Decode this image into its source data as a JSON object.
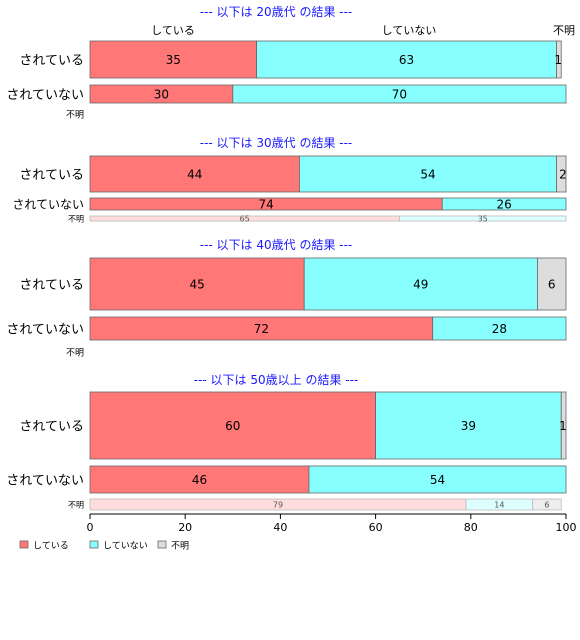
{
  "chart_data": {
    "type": "bar",
    "orientation": "horizontal",
    "stacked": true,
    "percent": true,
    "xlim": [
      0,
      100
    ],
    "xticks": [
      "0",
      "20",
      "40",
      "60",
      "80",
      "100"
    ],
    "series_names": [
      "している",
      "していない",
      "不明"
    ],
    "series_colors": [
      "#ff7777",
      "#88ffff",
      "#dddddd"
    ],
    "light_colors": [
      "#ffdddd",
      "#ddffff",
      "#eeeeee"
    ],
    "legend": {
      "position": "bottom-left",
      "items": [
        "している",
        "していない",
        "不明"
      ]
    },
    "top_labels": [
      "している",
      "していない",
      "不明"
    ],
    "panels": [
      {
        "title": "--- 以下は 20歳代 の結果 ---",
        "rows": [
          {
            "label": "されている",
            "values": [
              35,
              63,
              1
            ]
          },
          {
            "label": "されていない",
            "values": [
              30,
              70,
              0
            ]
          },
          {
            "label": "不明",
            "values": []
          }
        ]
      },
      {
        "title": "--- 以下は 30歳代 の結果 ---",
        "rows": [
          {
            "label": "されている",
            "values": [
              44,
              54,
              2
            ]
          },
          {
            "label": "されていない",
            "values": [
              74,
              26,
              0
            ]
          },
          {
            "label": "不明",
            "values": [
              65,
              35,
              0
            ]
          }
        ]
      },
      {
        "title": "--- 以下は 40歳代 の結果 ---",
        "rows": [
          {
            "label": "されている",
            "values": [
              45,
              49,
              6
            ]
          },
          {
            "label": "されていない",
            "values": [
              72,
              28,
              0
            ]
          },
          {
            "label": "不明",
            "values": []
          }
        ]
      },
      {
        "title": "--- 以下は 50歳以上 の結果 ---",
        "rows": [
          {
            "label": "されている",
            "values": [
              60,
              39,
              1
            ]
          },
          {
            "label": "されていない",
            "values": [
              46,
              54,
              0
            ]
          },
          {
            "label": "不明",
            "values": [
              79,
              14,
              6
            ]
          }
        ]
      }
    ]
  }
}
